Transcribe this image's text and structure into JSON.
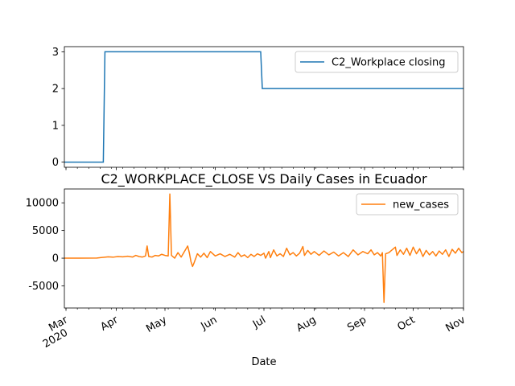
{
  "chart_data": [
    {
      "type": "line",
      "title": "",
      "xlabel": "",
      "ylabel": "",
      "ylim": [
        -0.14,
        3.14
      ],
      "yticks": [
        0,
        1,
        2,
        3
      ],
      "xlim": [
        "2020-02-29",
        "2020-11-01"
      ],
      "grid": false,
      "legend_position": "top-right",
      "series": [
        {
          "name": "C2_Workplace closing",
          "color": "#1f77b4",
          "points": [
            [
              "2020-02-29",
              0
            ],
            [
              "2020-03-24",
              0
            ],
            [
              "2020-03-25",
              3
            ],
            [
              "2020-06-29",
              3
            ],
            [
              "2020-06-30",
              2
            ],
            [
              "2020-11-01",
              2
            ]
          ]
        }
      ]
    },
    {
      "type": "line",
      "title": "C2_WORKPLACE_CLOSE VS Daily Cases in Ecuador",
      "xlabel": "Date",
      "ylabel": "",
      "ylim": [
        -9000,
        12500
      ],
      "yticks": [
        -5000,
        0,
        5000,
        10000
      ],
      "xlim": [
        "2020-02-29",
        "2020-11-01"
      ],
      "xtick_labels": [
        {
          "date": "2020-03-01",
          "label": "Mar",
          "sublabel": "2020"
        },
        {
          "date": "2020-04-01",
          "label": "Apr"
        },
        {
          "date": "2020-05-01",
          "label": "May"
        },
        {
          "date": "2020-06-01",
          "label": "Jun"
        },
        {
          "date": "2020-07-01",
          "label": "Jul"
        },
        {
          "date": "2020-08-01",
          "label": "Aug"
        },
        {
          "date": "2020-09-01",
          "label": "Sep"
        },
        {
          "date": "2020-10-01",
          "label": "Oct"
        },
        {
          "date": "2020-11-01",
          "label": "Nov"
        }
      ],
      "grid": false,
      "legend_position": "top-right",
      "series": [
        {
          "name": "new_cases",
          "color": "#ff7f0e",
          "points": [
            [
              "2020-02-29",
              0
            ],
            [
              "2020-03-10",
              0
            ],
            [
              "2020-03-20",
              20
            ],
            [
              "2020-03-24",
              150
            ],
            [
              "2020-03-27",
              250
            ],
            [
              "2020-03-30",
              180
            ],
            [
              "2020-04-02",
              300
            ],
            [
              "2020-04-05",
              250
            ],
            [
              "2020-04-08",
              350
            ],
            [
              "2020-04-11",
              200
            ],
            [
              "2020-04-13",
              500
            ],
            [
              "2020-04-15",
              300
            ],
            [
              "2020-04-17",
              200
            ],
            [
              "2020-04-19",
              400
            ],
            [
              "2020-04-20",
              2200
            ],
            [
              "2020-04-21",
              300
            ],
            [
              "2020-04-23",
              200
            ],
            [
              "2020-04-25",
              500
            ],
            [
              "2020-04-27",
              400
            ],
            [
              "2020-04-29",
              700
            ],
            [
              "2020-05-01",
              500
            ],
            [
              "2020-05-03",
              400
            ],
            [
              "2020-05-04",
              11600
            ],
            [
              "2020-05-05",
              500
            ],
            [
              "2020-05-07",
              0
            ],
            [
              "2020-05-09",
              1000
            ],
            [
              "2020-05-11",
              200
            ],
            [
              "2020-05-13",
              1200
            ],
            [
              "2020-05-15",
              2200
            ],
            [
              "2020-05-16",
              1000
            ],
            [
              "2020-05-17",
              -600
            ],
            [
              "2020-05-18",
              -1500
            ],
            [
              "2020-05-19",
              -800
            ],
            [
              "2020-05-21",
              800
            ],
            [
              "2020-05-23",
              200
            ],
            [
              "2020-05-25",
              900
            ],
            [
              "2020-05-27",
              100
            ],
            [
              "2020-05-29",
              1200
            ],
            [
              "2020-06-01",
              400
            ],
            [
              "2020-06-04",
              800
            ],
            [
              "2020-06-07",
              300
            ],
            [
              "2020-06-10",
              700
            ],
            [
              "2020-06-13",
              200
            ],
            [
              "2020-06-15",
              1000
            ],
            [
              "2020-06-17",
              300
            ],
            [
              "2020-06-19",
              600
            ],
            [
              "2020-06-21",
              100
            ],
            [
              "2020-06-23",
              700
            ],
            [
              "2020-06-25",
              300
            ],
            [
              "2020-06-27",
              800
            ],
            [
              "2020-06-29",
              500
            ],
            [
              "2020-07-01",
              900
            ],
            [
              "2020-07-02",
              0
            ],
            [
              "2020-07-04",
              1200
            ],
            [
              "2020-07-05",
              100
            ],
            [
              "2020-07-07",
              1500
            ],
            [
              "2020-07-09",
              400
            ],
            [
              "2020-07-11",
              800
            ],
            [
              "2020-07-13",
              300
            ],
            [
              "2020-07-15",
              1800
            ],
            [
              "2020-07-17",
              600
            ],
            [
              "2020-07-19",
              1000
            ],
            [
              "2020-07-21",
              400
            ],
            [
              "2020-07-23",
              900
            ],
            [
              "2020-07-25",
              2100
            ],
            [
              "2020-07-26",
              500
            ],
            [
              "2020-07-28",
              1400
            ],
            [
              "2020-07-30",
              700
            ],
            [
              "2020-08-01",
              1200
            ],
            [
              "2020-08-04",
              500
            ],
            [
              "2020-08-07",
              1300
            ],
            [
              "2020-08-10",
              600
            ],
            [
              "2020-08-13",
              1100
            ],
            [
              "2020-08-16",
              400
            ],
            [
              "2020-08-19",
              1000
            ],
            [
              "2020-08-22",
              300
            ],
            [
              "2020-08-25",
              1500
            ],
            [
              "2020-08-28",
              600
            ],
            [
              "2020-08-31",
              1200
            ],
            [
              "2020-09-03",
              800
            ],
            [
              "2020-09-05",
              1500
            ],
            [
              "2020-09-07",
              600
            ],
            [
              "2020-09-09",
              1000
            ],
            [
              "2020-09-11",
              400
            ],
            [
              "2020-09-12",
              1000
            ],
            [
              "2020-09-13",
              -8000
            ],
            [
              "2020-09-14",
              800
            ],
            [
              "2020-09-16",
              1000
            ],
            [
              "2020-09-18",
              1500
            ],
            [
              "2020-09-20",
              2000
            ],
            [
              "2020-09-21",
              500
            ],
            [
              "2020-09-23",
              1500
            ],
            [
              "2020-09-25",
              700
            ],
            [
              "2020-09-27",
              1800
            ],
            [
              "2020-09-29",
              500
            ],
            [
              "2020-10-01",
              2000
            ],
            [
              "2020-10-03",
              800
            ],
            [
              "2020-10-05",
              1700
            ],
            [
              "2020-10-07",
              300
            ],
            [
              "2020-10-09",
              1400
            ],
            [
              "2020-10-11",
              600
            ],
            [
              "2020-10-13",
              1200
            ],
            [
              "2020-10-15",
              400
            ],
            [
              "2020-10-17",
              1300
            ],
            [
              "2020-10-19",
              700
            ],
            [
              "2020-10-21",
              1500
            ],
            [
              "2020-10-23",
              300
            ],
            [
              "2020-10-25",
              1600
            ],
            [
              "2020-10-27",
              900
            ],
            [
              "2020-10-29",
              1800
            ],
            [
              "2020-10-31",
              1000
            ],
            [
              "2020-11-01",
              1200
            ]
          ]
        }
      ]
    }
  ]
}
